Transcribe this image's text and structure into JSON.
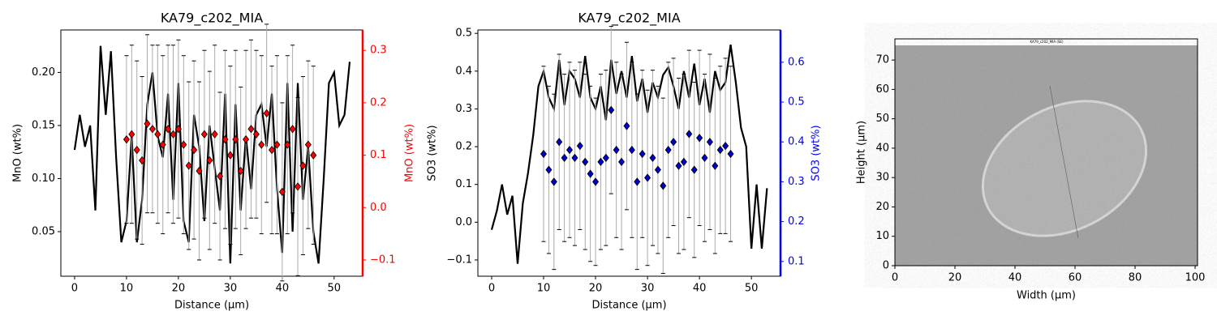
{
  "chart_data": [
    {
      "type": "line",
      "title": "KA79_c202_MIA",
      "xlabel": "Distance (µm)",
      "ylabel": "MnO (wt%)",
      "y2label": "MnO (wt%)",
      "y2color": "red",
      "xlim": [
        -2.65,
        55.5
      ],
      "xticks": [
        0,
        10,
        20,
        30,
        40,
        50
      ],
      "ylim": [
        0.008,
        0.24
      ],
      "yticks": [
        0.05,
        {
          "value": 0.1,
          "label": "0.10"
        },
        0.15,
        {
          "value": 0.2,
          "label": "0.20"
        }
      ],
      "y2lim": [
        -0.131,
        0.339
      ],
      "y2ticks": [
        {
          "value": -0.1,
          "label": "−0.1"
        },
        {
          "value": 0,
          "label": "0.0"
        },
        0.1,
        0.2,
        0.3
      ],
      "series": [
        {
          "kind": "line",
          "color": "black",
          "x": [
            0,
            1,
            2,
            3,
            4,
            5,
            6,
            7,
            8,
            9,
            10,
            11,
            12,
            13,
            14,
            15,
            16,
            17,
            18,
            19,
            20,
            21,
            22,
            23,
            24,
            25,
            26,
            27,
            28,
            29,
            30,
            31,
            32,
            33,
            34,
            35,
            36,
            37,
            38,
            39,
            40,
            41,
            42,
            43,
            44,
            45,
            46,
            47,
            48,
            49,
            50,
            51,
            52,
            53
          ],
          "values": [
            0.127,
            0.16,
            0.13,
            0.15,
            0.07,
            0.225,
            0.16,
            0.22,
            0.12,
            0.04,
            0.06,
            0.14,
            0.04,
            0.08,
            0.17,
            0.2,
            0.14,
            0.12,
            0.18,
            0.08,
            0.19,
            0.06,
            0.04,
            0.16,
            0.13,
            0.06,
            0.15,
            0.11,
            0.07,
            0.18,
            0.02,
            0.17,
            0.07,
            0.14,
            0.09,
            0.16,
            0.17,
            0.13,
            0.18,
            0.09,
            0.03,
            0.19,
            0.05,
            0.19,
            0.08,
            0.13,
            0.05,
            0.02,
            0.1,
            0.19,
            0.2,
            0.15,
            0.16,
            0.21
          ]
        },
        {
          "kind": "errorbar",
          "axis": "y2",
          "color": "red",
          "x": [
            10,
            11,
            12,
            13,
            14,
            15,
            16,
            17,
            18,
            19,
            20,
            21,
            22,
            23,
            24,
            25,
            26,
            27,
            28,
            29,
            30,
            31,
            32,
            33,
            34,
            35,
            36,
            37,
            38,
            39,
            40,
            41,
            42,
            43,
            44,
            45,
            46
          ],
          "values": [
            0.13,
            0.14,
            0.11,
            0.09,
            0.16,
            0.15,
            0.14,
            0.12,
            0.15,
            0.14,
            0.15,
            0.12,
            0.08,
            0.11,
            0.07,
            0.14,
            0.09,
            0.14,
            0.06,
            0.13,
            0.1,
            0.13,
            0.07,
            0.13,
            0.15,
            0.14,
            0.12,
            0.18,
            0.11,
            0.12,
            0.03,
            0.12,
            0.15,
            0.04,
            0.08,
            0.12,
            0.1
          ],
          "errors": [
            0.16,
            0.17,
            0.17,
            0.16,
            0.17,
            0.16,
            0.17,
            0.17,
            0.16,
            0.17,
            0.17,
            0.17,
            0.16,
            0.17,
            0.17,
            0.16,
            0.17,
            0.17,
            0.16,
            0.17,
            0.17,
            0.17,
            0.16,
            0.17,
            0.17,
            0.16,
            0.17,
            0.17,
            0.16,
            0.17,
            0.17,
            0.17,
            0.16,
            0.17,
            0.17,
            0.16,
            0.17
          ]
        }
      ]
    },
    {
      "type": "line",
      "title": "KA79_c202_MIA",
      "xlabel": "Distance (µm)",
      "ylabel": "SO3 (wt%)",
      "y2label": "SO3 (wt%)",
      "y2color": "blue",
      "xlim": [
        -2.65,
        55.6
      ],
      "xticks": [
        0,
        10,
        20,
        30,
        40,
        50
      ],
      "ylim": [
        -0.143,
        0.509
      ],
      "yticks": [
        {
          "value": -0.1,
          "label": "−0.1"
        },
        {
          "value": 0,
          "label": "0.0"
        },
        0.1,
        0.2,
        0.3,
        0.4,
        0.5
      ],
      "y2lim": [
        0.063,
        0.681
      ],
      "y2ticks": [
        0.1,
        0.2,
        0.3,
        0.4,
        0.5,
        0.6
      ],
      "series": [
        {
          "kind": "line",
          "color": "black",
          "x": [
            0,
            1,
            2,
            3,
            4,
            5,
            6,
            7,
            8,
            9,
            10,
            11,
            12,
            13,
            14,
            15,
            16,
            17,
            18,
            19,
            20,
            21,
            22,
            23,
            24,
            25,
            26,
            27,
            28,
            29,
            30,
            31,
            32,
            33,
            34,
            35,
            36,
            37,
            38,
            39,
            40,
            41,
            42,
            43,
            44,
            45,
            46,
            47,
            48,
            49,
            50,
            51,
            52,
            53
          ],
          "values": [
            -0.02,
            0.03,
            0.1,
            0.02,
            0.07,
            -0.11,
            0.05,
            0.13,
            0.23,
            0.36,
            0.4,
            0.33,
            0.3,
            0.43,
            0.31,
            0.4,
            0.38,
            0.33,
            0.44,
            0.33,
            0.3,
            0.36,
            0.27,
            0.43,
            0.34,
            0.4,
            0.33,
            0.44,
            0.32,
            0.38,
            0.29,
            0.37,
            0.33,
            0.39,
            0.41,
            0.36,
            0.3,
            0.4,
            0.33,
            0.42,
            0.31,
            0.38,
            0.29,
            0.4,
            0.35,
            0.37,
            0.47,
            0.37,
            0.25,
            0.2,
            -0.07,
            0.1,
            -0.07,
            0.09
          ]
        },
        {
          "kind": "errorbar",
          "axis": "y2",
          "color": "#0000cc",
          "x": [
            10,
            11,
            12,
            13,
            14,
            15,
            16,
            17,
            18,
            19,
            20,
            21,
            22,
            23,
            24,
            25,
            26,
            27,
            28,
            29,
            30,
            31,
            32,
            33,
            34,
            35,
            36,
            37,
            38,
            39,
            40,
            41,
            42,
            43,
            44,
            45,
            46
          ],
          "values": [
            0.37,
            0.33,
            0.3,
            0.4,
            0.36,
            0.38,
            0.36,
            0.39,
            0.35,
            0.32,
            0.3,
            0.35,
            0.36,
            0.48,
            0.38,
            0.35,
            0.44,
            0.38,
            0.3,
            0.37,
            0.31,
            0.36,
            0.33,
            0.29,
            0.38,
            0.4,
            0.34,
            0.35,
            0.42,
            0.33,
            0.41,
            0.36,
            0.4,
            0.34,
            0.38,
            0.39,
            0.37
          ],
          "errors": [
            0.22,
            0.21,
            0.22,
            0.22,
            0.21,
            0.22,
            0.22,
            0.21,
            0.22,
            0.22,
            0.21,
            0.22,
            0.22,
            0.21,
            0.22,
            0.22,
            0.21,
            0.22,
            0.22,
            0.21,
            0.22,
            0.22,
            0.21,
            0.22,
            0.22,
            0.21,
            0.22,
            0.22,
            0.21,
            0.22,
            0.22,
            0.21,
            0.22,
            0.22,
            0.21,
            0.22,
            0.22
          ]
        }
      ]
    },
    {
      "type": "image",
      "image_caption": "KA79_c202_MIA (SE)",
      "xlabel": "Width (µm)",
      "ylabel": "Height (µm)",
      "xlim": [
        0,
        100.8
      ],
      "xticks": [
        0,
        20,
        40,
        60,
        80,
        100
      ],
      "ylim": [
        0,
        77.2
      ],
      "yticks": [
        0,
        10,
        20,
        30,
        40,
        50,
        60,
        70
      ]
    }
  ]
}
